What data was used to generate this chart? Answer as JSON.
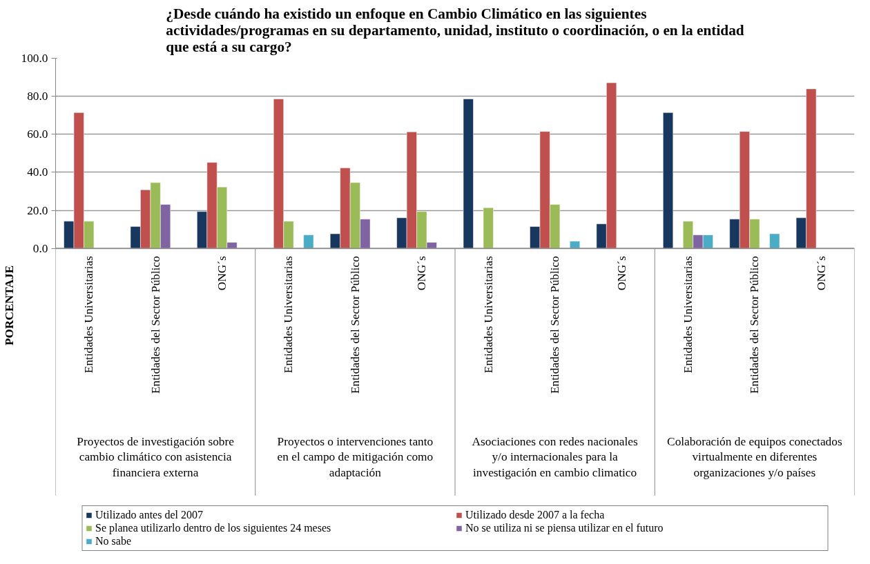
{
  "chart_data": {
    "type": "bar",
    "title": "¿Desde cuándo ha existido un enfoque en Cambio Climático en las siguientes actividades/programas en su departamento, unidad, instituto o coordinación, o en la entidad que está a su cargo?",
    "ylabel": "PORCENTAJE",
    "categories": [
      "Entidades Universitarias",
      "Entidades del Sector Público",
      "ONG´s",
      "Entidades Universitarias",
      "Entidades del Sector Público",
      "ONG´s",
      "Entidades Universitarias",
      "Entidades del Sector Público",
      "ONG´s",
      "Entidades Universitarias",
      "Entidades del Sector Público",
      "ONG´s"
    ],
    "annotations": [
      "Proyectos de investigación sobre cambio climático con asistencia financiera externa",
      "Proyectos o intervenciones tanto en el campo de mitigación como adaptación",
      "Asociaciones con redes nacionales y/o internacionales para la investigación en cambio climatico",
      "Colaboración de equipos conectados virtualmente en diferentes organizaciones y/o países"
    ],
    "series": [
      {
        "name": "Utilizado antes del 2007",
        "color": "#17375e",
        "values": [
          14.3,
          11.5,
          19.4,
          null,
          7.7,
          16.1,
          78.6,
          11.5,
          12.9,
          71.4,
          15.4,
          16.1
        ]
      },
      {
        "name": "Utilizado desde 2007 a la fecha",
        "color": "#c0504d",
        "values": [
          71.4,
          30.8,
          45.2,
          78.6,
          42.3,
          61.3,
          null,
          61.5,
          87.1,
          null,
          61.5,
          83.9
        ]
      },
      {
        "name": "Se planea utilizarlo dentro de los siguientes 24 meses",
        "color": "#9bbb59",
        "values": [
          14.3,
          34.6,
          32.3,
          14.3,
          34.6,
          19.4,
          21.4,
          23.1,
          null,
          14.3,
          15.4,
          null
        ]
      },
      {
        "name": "No se utiliza ni se piensa utilizar en el futuro",
        "color": "#8064a2",
        "values": [
          null,
          23.1,
          3.2,
          null,
          15.4,
          3.2,
          null,
          null,
          null,
          7.1,
          null,
          null
        ]
      },
      {
        "name": "No sabe",
        "color": "#4bacc6",
        "values": [
          null,
          null,
          null,
          7.1,
          null,
          null,
          null,
          3.8,
          null,
          7.1,
          7.7,
          null
        ]
      }
    ],
    "ylim": [
      0,
      100
    ],
    "yticks": [
      {
        "value": 0,
        "label": "0.0"
      },
      {
        "value": 20,
        "label": "20.0"
      },
      {
        "value": 40,
        "label": "40.0"
      },
      {
        "value": 60,
        "label": "60.0"
      },
      {
        "value": 80,
        "label": "80.0"
      },
      {
        "value": 100,
        "label": "100.0"
      }
    ],
    "grid": "y",
    "legend": "bottom"
  }
}
